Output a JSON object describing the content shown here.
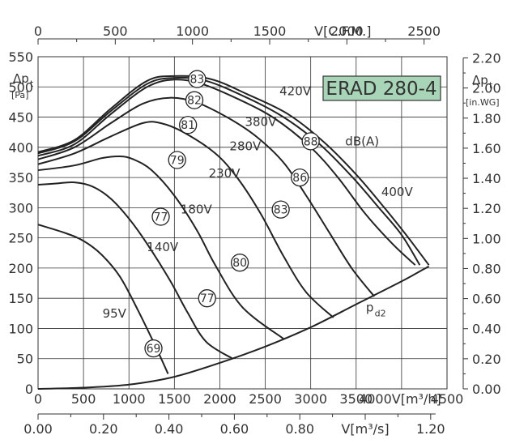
{
  "chart_data": {
    "type": "line",
    "model_label": "ERAD 280-4",
    "left_axis": {
      "title": "Δp",
      "title_sub": "t",
      "unit": "[Pa]",
      "ticks": [
        0,
        50,
        100,
        150,
        200,
        250,
        300,
        350,
        400,
        450,
        500,
        550
      ],
      "ylim": [
        0,
        550
      ]
    },
    "right_axis": {
      "title": "Δp",
      "title_sub": "t",
      "unit": "[in.WG]",
      "ticks": [
        "0.00",
        "0.20",
        "0.40",
        "0.60",
        "0.80",
        "1.00",
        "1.20",
        "1.40",
        "1.60",
        "1.80",
        "2.00",
        "2.20"
      ]
    },
    "top_axis": {
      "unit": "V[C.F.M.]",
      "ticks": [
        0,
        500,
        1000,
        1500,
        2000,
        2500
      ]
    },
    "bottom_axis": {
      "unit": "V[m³/h]",
      "ticks": [
        0,
        500,
        1000,
        1500,
        2000,
        2500,
        3000,
        3500,
        4000,
        4500
      ],
      "xlim": [
        0,
        4500
      ]
    },
    "bottom2_axis": {
      "unit": "V[m³/s]",
      "ticks": [
        "0.00",
        "0.20",
        "0.40",
        "0.60",
        "0.80",
        "1.00",
        "1.20"
      ]
    },
    "grid": true,
    "series": [
      {
        "name": "95V",
        "points": [
          [
            0,
            272
          ],
          [
            300,
            258
          ],
          [
            500,
            245
          ],
          [
            700,
            222
          ],
          [
            900,
            186
          ],
          [
            1100,
            130
          ],
          [
            1300,
            68
          ],
          [
            1430,
            25
          ]
        ]
      },
      {
        "name": "140V",
        "points": [
          [
            0,
            338
          ],
          [
            200,
            340
          ],
          [
            400,
            342
          ],
          [
            600,
            335
          ],
          [
            800,
            315
          ],
          [
            1000,
            282
          ],
          [
            1200,
            240
          ],
          [
            1450,
            180
          ],
          [
            1650,
            125
          ],
          [
            1850,
            78
          ],
          [
            2140,
            50
          ]
        ]
      },
      {
        "name": "180V",
        "points": [
          [
            0,
            362
          ],
          [
            400,
            370
          ],
          [
            700,
            382
          ],
          [
            900,
            385
          ],
          [
            1050,
            380
          ],
          [
            1250,
            362
          ],
          [
            1500,
            320
          ],
          [
            1750,
            262
          ],
          [
            1950,
            205
          ],
          [
            2250,
            135
          ],
          [
            2700,
            83
          ]
        ]
      },
      {
        "name": "230V",
        "points": [
          [
            0,
            372
          ],
          [
            400,
            390
          ],
          [
            800,
            418
          ],
          [
            1150,
            440
          ],
          [
            1350,
            440
          ],
          [
            1600,
            425
          ],
          [
            1950,
            390
          ],
          [
            2200,
            348
          ],
          [
            2450,
            290
          ],
          [
            2700,
            220
          ],
          [
            2950,
            160
          ],
          [
            3250,
            118
          ]
        ]
      },
      {
        "name": "280V",
        "points": [
          [
            0,
            380
          ],
          [
            400,
            400
          ],
          [
            800,
            440
          ],
          [
            1150,
            472
          ],
          [
            1450,
            482
          ],
          [
            1750,
            474
          ],
          [
            2100,
            448
          ],
          [
            2400,
            418
          ],
          [
            2700,
            375
          ],
          [
            2950,
            320
          ],
          [
            3200,
            260
          ],
          [
            3450,
            200
          ],
          [
            3700,
            153
          ]
        ]
      },
      {
        "name": "380V",
        "points": [
          [
            0,
            386
          ],
          [
            400,
            405
          ],
          [
            800,
            455
          ],
          [
            1200,
            500
          ],
          [
            1500,
            512
          ],
          [
            1800,
            505
          ],
          [
            2200,
            480
          ],
          [
            2600,
            448
          ],
          [
            3000,
            400
          ],
          [
            3300,
            350
          ],
          [
            3600,
            290
          ],
          [
            3900,
            240
          ],
          [
            4150,
            205
          ]
        ]
      },
      {
        "name": "420V",
        "points": [
          [
            0,
            390
          ],
          [
            400,
            410
          ],
          [
            800,
            460
          ],
          [
            1200,
            505
          ],
          [
            1500,
            515
          ],
          [
            1850,
            510
          ],
          [
            2300,
            482
          ],
          [
            2700,
            450
          ],
          [
            3100,
            405
          ],
          [
            3450,
            352
          ],
          [
            3750,
            300
          ],
          [
            4000,
            255
          ],
          [
            4200,
            205
          ]
        ]
      },
      {
        "name": "400V",
        "points": [
          [
            0,
            392
          ],
          [
            400,
            412
          ],
          [
            800,
            464
          ],
          [
            1200,
            510
          ],
          [
            1500,
            518
          ],
          [
            1900,
            513
          ],
          [
            2300,
            488
          ],
          [
            2750,
            455
          ],
          [
            3150,
            408
          ],
          [
            3500,
            355
          ],
          [
            3800,
            302
          ],
          [
            4050,
            255
          ],
          [
            4300,
            205
          ]
        ]
      },
      {
        "name": "pd2",
        "points": [
          [
            0,
            0
          ],
          [
            500,
            2
          ],
          [
            1000,
            7
          ],
          [
            1500,
            20
          ],
          [
            2000,
            43
          ],
          [
            2500,
            70
          ],
          [
            3000,
            102
          ],
          [
            3500,
            140
          ],
          [
            4000,
            178
          ],
          [
            4300,
            203
          ]
        ]
      }
    ],
    "annotations": [
      {
        "text": "83",
        "x": 1750,
        "y": 513
      },
      {
        "text": "82",
        "x": 1720,
        "y": 478
      },
      {
        "text": "81",
        "x": 1650,
        "y": 437
      },
      {
        "text": "79",
        "x": 1530,
        "y": 379
      },
      {
        "text": "77",
        "x": 1350,
        "y": 285
      },
      {
        "text": "88",
        "x": 3000,
        "y": 410
      },
      {
        "text": "86",
        "x": 2880,
        "y": 350
      },
      {
        "text": "83",
        "x": 2670,
        "y": 297
      },
      {
        "text": "80",
        "x": 2220,
        "y": 209
      },
      {
        "text": "77",
        "x": 1860,
        "y": 150
      },
      {
        "text": "69",
        "x": 1270,
        "y": 67
      }
    ],
    "curve_labels": [
      {
        "text": "420V",
        "x": 2830,
        "y": 493
      },
      {
        "text": "380V",
        "x": 2450,
        "y": 442
      },
      {
        "text": "280V",
        "x": 2280,
        "y": 402
      },
      {
        "text": "230V",
        "x": 2050,
        "y": 357
      },
      {
        "text": "180V",
        "x": 1740,
        "y": 297
      },
      {
        "text": "140V",
        "x": 1370,
        "y": 235
      },
      {
        "text": "95V",
        "x": 840,
        "y": 125
      },
      {
        "text": "400V",
        "x": 3950,
        "y": 326
      },
      {
        "text": "dB(A)",
        "x": 3380,
        "y": 410
      }
    ],
    "pd_label": {
      "text": "p",
      "sub": "d2",
      "x": 3650,
      "y": 128
    }
  }
}
